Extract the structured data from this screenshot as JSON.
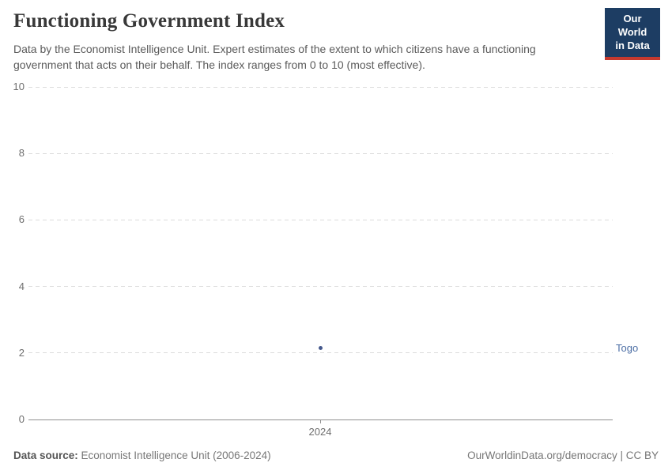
{
  "header": {
    "title": "Functioning Government Index",
    "subtitle": "Data by the Economist Intelligence Unit. Expert estimates of the extent to which citizens have a functioning government that acts on their behalf. The index ranges from 0 to 10 (most effective).",
    "logo": {
      "line1": "Our World",
      "line2": "in Data",
      "bg_color": "#1d3d63",
      "accent_color": "#c5392e"
    }
  },
  "chart_data": {
    "type": "scatter",
    "title": "Functioning Government Index",
    "x": [
      2024
    ],
    "series": [
      {
        "name": "Togo",
        "values": [
          2.14
        ],
        "color": "#4d6fa5",
        "dot_color": "#44588c"
      }
    ],
    "xlabel": "",
    "ylabel": "",
    "ylim": [
      0,
      10
    ],
    "yticks": [
      0,
      2,
      4,
      6,
      8,
      10
    ],
    "xticks": [
      2024
    ],
    "grid": "horizontal-dashed",
    "legend_position": "right-entity-label",
    "gridline_color": "#dcdcdc",
    "axis_color": "#8f8f8f",
    "tick_label_color": "#6e6e6e"
  },
  "footer": {
    "source_label": "Data source:",
    "source_text": " Economist Intelligence Unit (2006-2024)",
    "license_text": "OurWorldinData.org/democracy | CC BY"
  }
}
